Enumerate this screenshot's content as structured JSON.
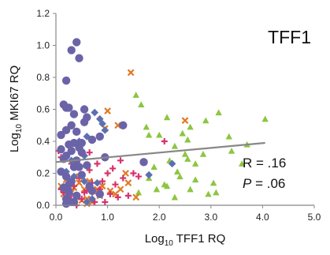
{
  "chart_data": {
    "type": "scatter",
    "title": "TFF1",
    "xlabel_parts": [
      "Log",
      "10",
      " TFF1 RQ"
    ],
    "ylabel_parts": [
      "Log",
      "10",
      " MKI67 RQ"
    ],
    "xlim": [
      0,
      5
    ],
    "ylim": [
      0,
      1.2
    ],
    "x_ticks": [
      "0.0",
      "1.0",
      "2.0",
      "3.0",
      "4.0",
      "5.0"
    ],
    "y_ticks": [
      "0.0",
      "0.2",
      "0.4",
      "0.6",
      "0.8",
      "1.0",
      "1.2"
    ],
    "grid": false,
    "legend": "none",
    "stats": {
      "r_label": "R = .16",
      "p_label": "P",
      "p_value": " = .06"
    },
    "trendline": {
      "x": [
        0.0,
        4.05
      ],
      "y": [
        0.27,
        0.39
      ],
      "color": "#888888"
    },
    "series": [
      {
        "marker": "circle",
        "color": "#6B63A8",
        "x": [
          0.3,
          0.4,
          0.45,
          0.15,
          0.2,
          0.25,
          0.35,
          0.55,
          0.2,
          0.3,
          0.4,
          0.6,
          0.7,
          0.85,
          0.25,
          0.35,
          0.45,
          0.3,
          0.2,
          0.5,
          0.4,
          0.35,
          0.6,
          0.1,
          0.2,
          0.3,
          0.25,
          0.5,
          0.15,
          0.25,
          0.4,
          0.7,
          0.85,
          0.2,
          0.35,
          0.15,
          0.1,
          1.3,
          1.7,
          0.2,
          0.5,
          0.95,
          0.45,
          0.65,
          0.1,
          0.3,
          0.55,
          0.2
        ],
        "y": [
          0.97,
          1.02,
          0.92,
          0.63,
          0.61,
          0.61,
          0.57,
          0.6,
          0.47,
          0.5,
          0.46,
          0.55,
          0.41,
          0.43,
          0.38,
          0.39,
          0.36,
          0.34,
          0.31,
          0.33,
          0.28,
          0.24,
          0.25,
          0.21,
          0.18,
          0.15,
          0.13,
          0.19,
          0.11,
          0.08,
          0.06,
          0.09,
          0.07,
          0.04,
          0.02,
          0.29,
          0.35,
          0.5,
          0.27,
          0.78,
          0.39,
          0.3,
          0.24,
          0.12,
          0.44,
          0.02,
          0.52,
          0.01
        ]
      },
      {
        "marker": "diamond",
        "color": "#5E6FB0",
        "x": [
          0.75,
          0.85,
          0.9,
          0.95,
          0.6,
          0.45,
          0.55,
          0.3,
          0.2,
          2.25,
          1.8,
          0.55,
          0.8,
          0.25,
          0.4,
          0.7,
          0.6,
          0.35
        ],
        "y": [
          0.58,
          0.54,
          0.51,
          0.47,
          0.43,
          0.4,
          0.31,
          0.28,
          0.21,
          0.26,
          0.19,
          0.15,
          0.14,
          0.1,
          0.06,
          0.04,
          0.02,
          0.18
        ]
      },
      {
        "marker": "x",
        "color": "#E07A22",
        "x": [
          1.45,
          1.0,
          2.5,
          1.2,
          0.95,
          1.35,
          0.45,
          0.65,
          0.3,
          0.55,
          0.75,
          0.1,
          0.4,
          0.25,
          0.6,
          0.85,
          1.05,
          1.4,
          0.2,
          0.35,
          0.5,
          0.7,
          0.9,
          0.15,
          1.55,
          1.15,
          0.8,
          0.45,
          0.3,
          1.25,
          0.6
        ],
        "y": [
          0.83,
          0.59,
          0.53,
          0.5,
          0.48,
          0.2,
          0.18,
          0.15,
          0.13,
          0.1,
          0.08,
          0.12,
          0.05,
          0.02,
          0.04,
          0.06,
          0.09,
          0.14,
          0.16,
          0.11,
          0.03,
          0.02,
          0.12,
          0.07,
          0.05,
          0.07,
          0.1,
          0.14,
          0.08,
          0.1,
          0.01
        ]
      },
      {
        "marker": "triangle",
        "color": "#8CC63F",
        "x": [
          1.55,
          1.65,
          2.0,
          1.75,
          2.15,
          1.8,
          2.3,
          2.6,
          2.55,
          2.9,
          3.15,
          3.35,
          4.05,
          3.7,
          3.4,
          2.85,
          2.55,
          2.2,
          1.9,
          2.35,
          2.7,
          3.05,
          2.4,
          2.15,
          1.95,
          2.6,
          2.3,
          2.95,
          3.1,
          2.5,
          1.8,
          1.6,
          2.1,
          2.7,
          3.6,
          2.45
        ],
        "y": [
          0.69,
          0.63,
          0.44,
          0.49,
          0.55,
          0.44,
          0.37,
          0.49,
          0.41,
          0.53,
          0.58,
          0.43,
          0.54,
          0.38,
          0.34,
          0.32,
          0.29,
          0.28,
          0.24,
          0.21,
          0.16,
          0.14,
          0.18,
          0.12,
          0.1,
          0.1,
          0.05,
          0.07,
          0.08,
          0.32,
          0.17,
          0.08,
          0.13,
          0.26,
          0.26,
          0.45
        ]
      },
      {
        "marker": "plus",
        "color": "#D6336C",
        "x": [
          0.05,
          0.1,
          0.3,
          0.55,
          0.65,
          0.8,
          1.0,
          1.1,
          1.3,
          1.5,
          1.25,
          0.9,
          0.7,
          0.45,
          0.2,
          0.15,
          0.35,
          0.6,
          0.85,
          1.05,
          1.2,
          1.4,
          0.5,
          0.25,
          0.75,
          0.95,
          0.4,
          1.6,
          2.1,
          1.15,
          0.1,
          0.65,
          0.3,
          0.55
        ],
        "y": [
          0.34,
          0.3,
          0.26,
          0.31,
          0.22,
          0.26,
          0.2,
          0.23,
          0.17,
          0.2,
          0.28,
          0.15,
          0.14,
          0.17,
          0.19,
          0.08,
          0.12,
          0.09,
          0.1,
          0.07,
          0.05,
          0.06,
          0.04,
          0.05,
          0.02,
          0.02,
          0.0,
          0.18,
          0.4,
          0.13,
          0.1,
          0.33,
          0.07,
          0.08
        ]
      }
    ]
  }
}
